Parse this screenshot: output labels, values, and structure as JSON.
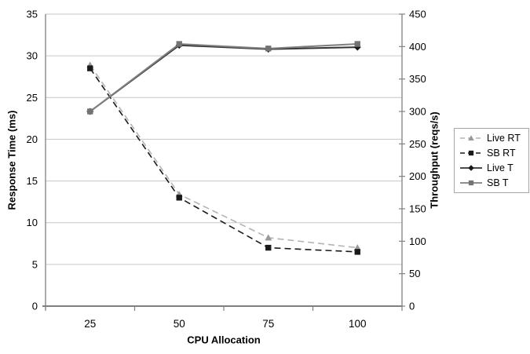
{
  "chart_data": {
    "type": "line",
    "title": "",
    "categories": [
      "25",
      "50",
      "75",
      "100"
    ],
    "x_axis": {
      "label": "CPU Allocation"
    },
    "y_left": {
      "label": "Response Time (ms)",
      "min": 0,
      "max": 35,
      "ticks": [
        0,
        5,
        10,
        15,
        20,
        25,
        30,
        35
      ]
    },
    "y_right": {
      "label": "Throughput (reqs/s)",
      "min": 0,
      "max": 450,
      "ticks": [
        0,
        50,
        100,
        150,
        200,
        250,
        300,
        350,
        400,
        450
      ]
    },
    "series": [
      {
        "name": "Live RT",
        "axis": "left",
        "values": [
          28.9,
          13.4,
          8.2,
          7.0
        ],
        "color": "#b3b3b3",
        "marker_color": "#999999",
        "dash": true,
        "marker": "triangle"
      },
      {
        "name": "SB RT",
        "axis": "left",
        "values": [
          28.5,
          13.0,
          7.0,
          6.5
        ],
        "color": "#1a1a1a",
        "marker_color": "#1a1a1a",
        "dash": true,
        "marker": "square"
      },
      {
        "name": "Live T",
        "axis": "right",
        "values": [
          300,
          402,
          396,
          399
        ],
        "color": "#333333",
        "marker_color": "#1a1a1a",
        "dash": false,
        "marker": "diamond"
      },
      {
        "name": "SB T",
        "axis": "right",
        "values": [
          300,
          404,
          397,
          404
        ],
        "color": "#808080",
        "marker_color": "#737373",
        "dash": false,
        "marker": "square"
      }
    ],
    "legend_position": "right",
    "grid": true,
    "colors": {
      "gridline": "#c6c6c6",
      "axis": "#808080",
      "background": "#ffffff",
      "legend_border": "#a6a6a6",
      "text": "#000000"
    }
  }
}
